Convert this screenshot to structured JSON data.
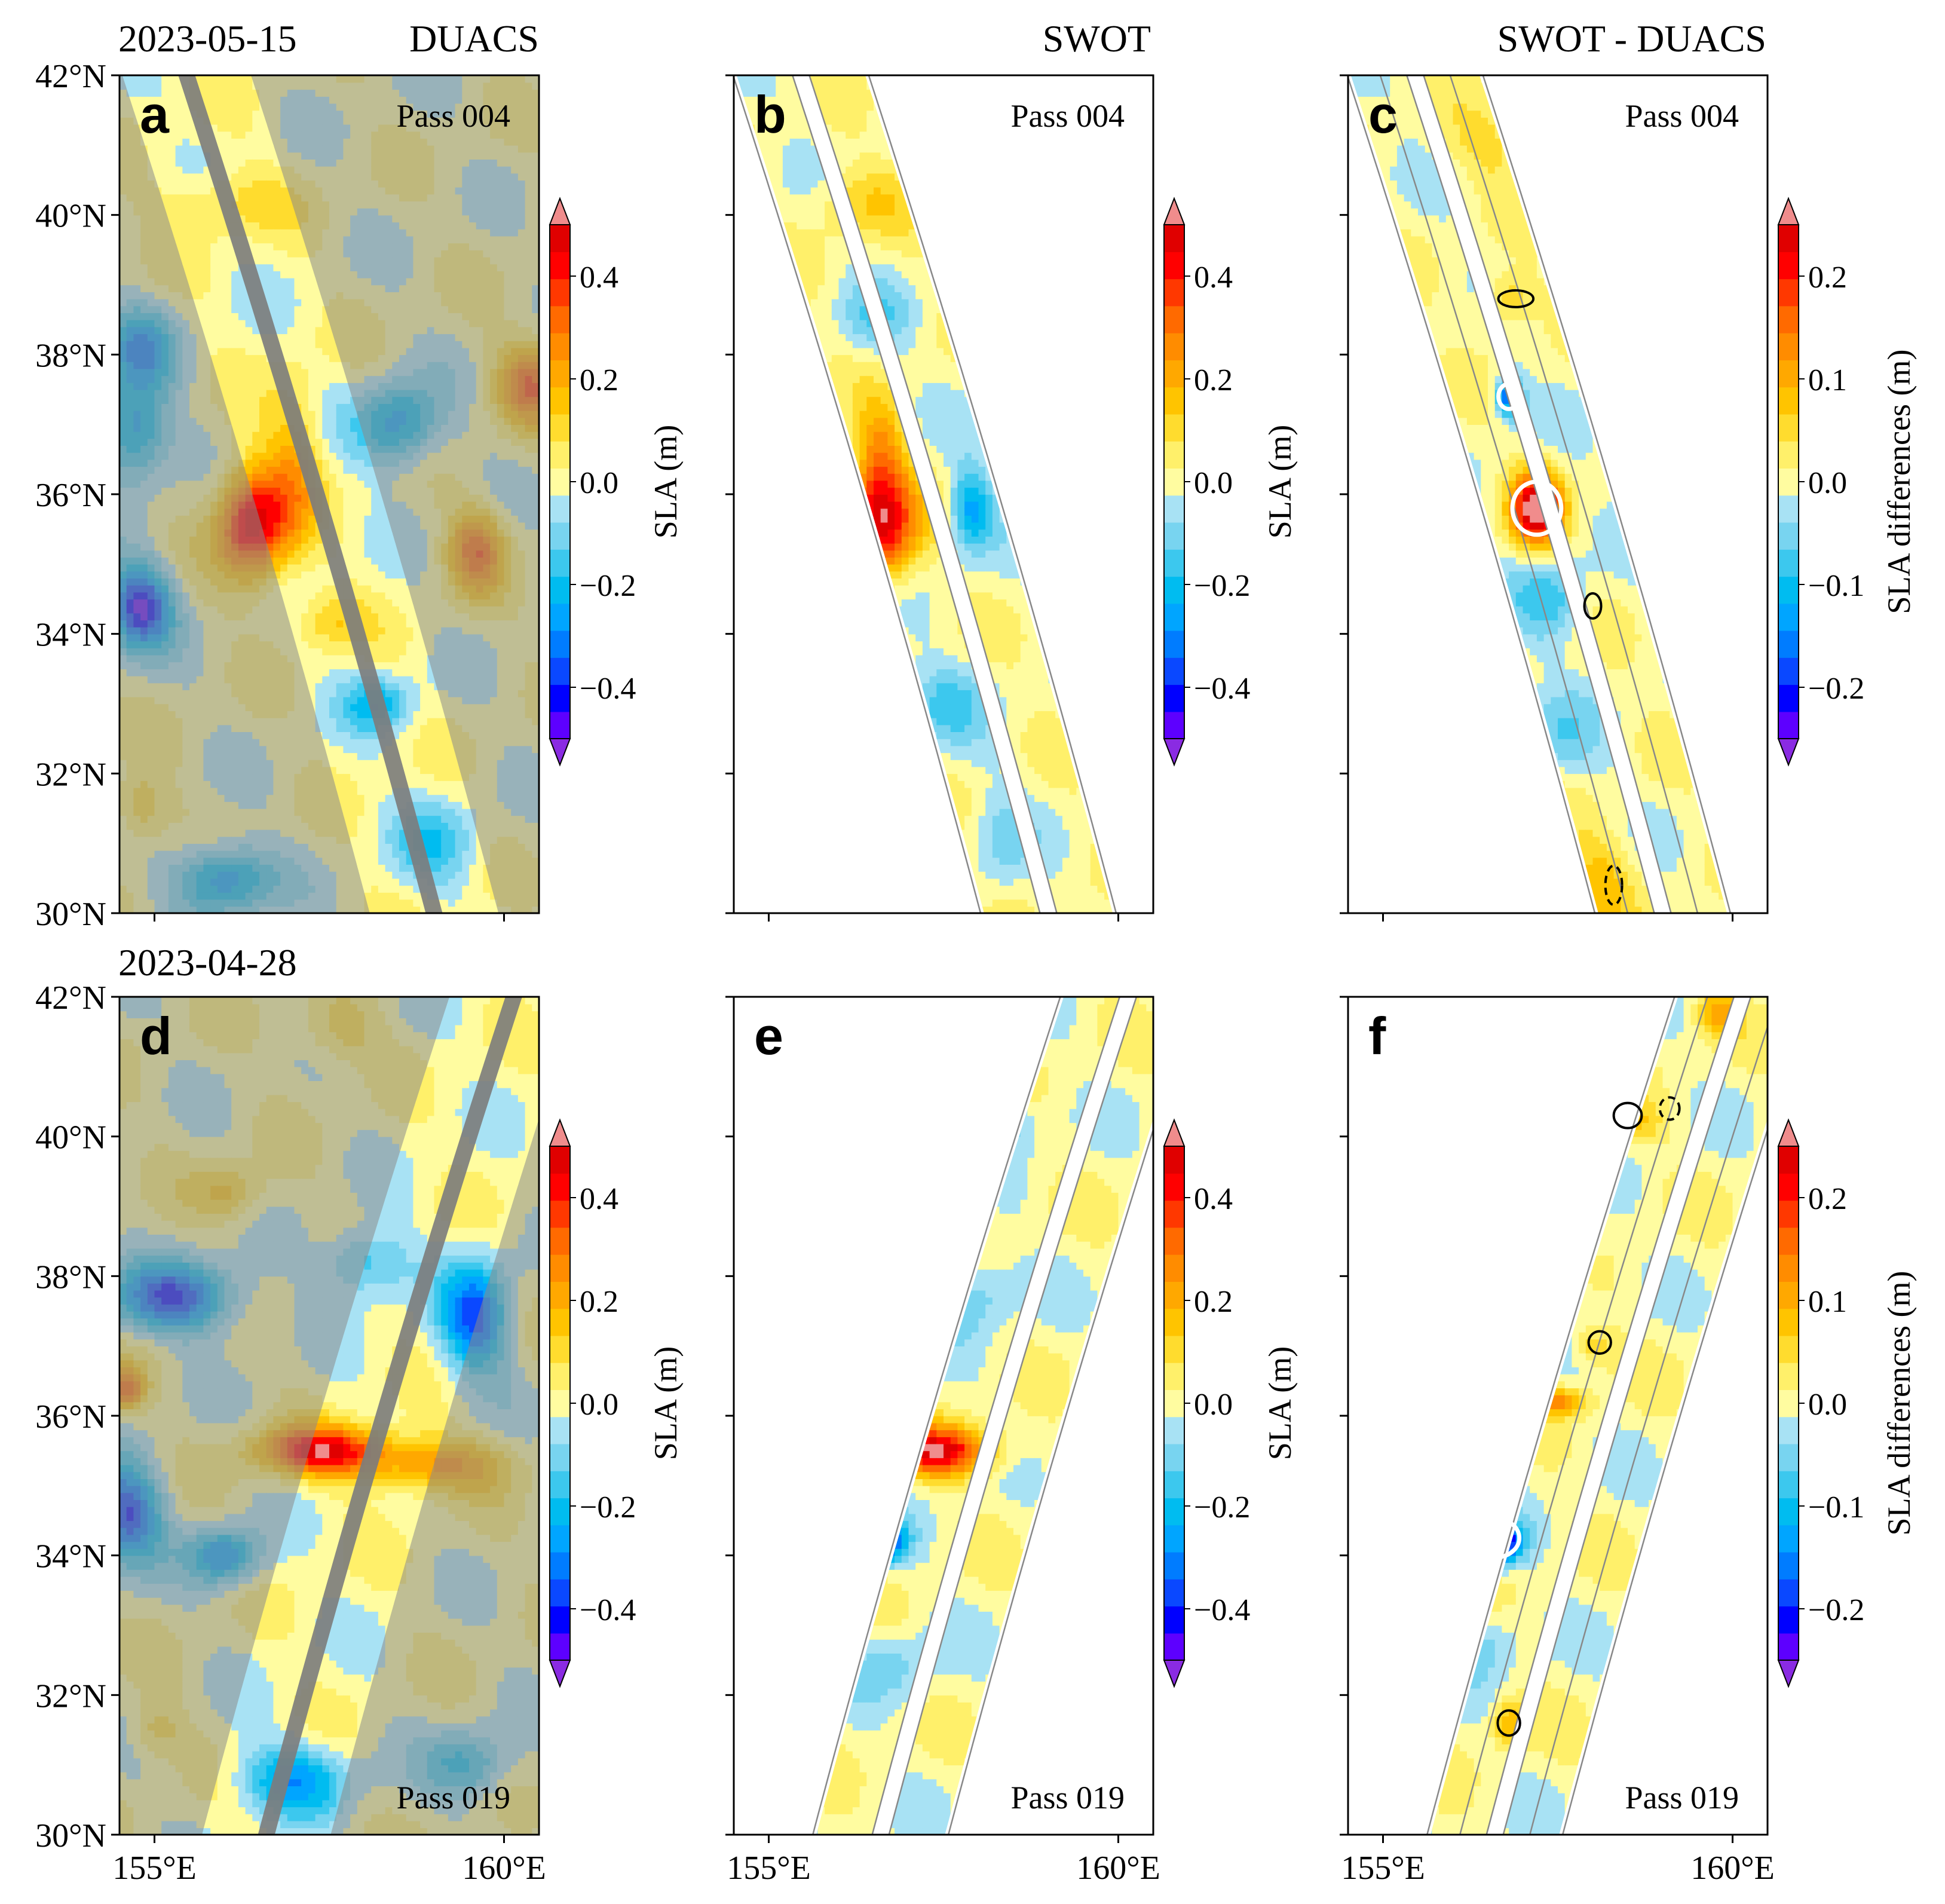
{
  "figure": {
    "col_titles": [
      "DUACS",
      "SWOT",
      "SWOT - DUACS"
    ],
    "row_dates": [
      "2023-05-15",
      "2023-04-28"
    ]
  },
  "chart_data": [
    {
      "type": "heatmap",
      "panel": "a",
      "top_title": "DUACS",
      "date": "2023-05-15",
      "pass": "Pass 004",
      "dataset": "DUACS",
      "swath": "descending",
      "xlim": [
        154.5,
        160.5
      ],
      "ylim": [
        30,
        42
      ],
      "xticks": [
        "155°E",
        "160°E"
      ],
      "yticks": [
        "30°N",
        "32°N",
        "34°N",
        "36°N",
        "38°N",
        "40°N",
        "42°N"
      ],
      "eddies": [
        {
          "lon": 156.4,
          "lat": 35.6,
          "amp": 0.48,
          "sx": 0.5,
          "sy": 0.8
        },
        {
          "lon": 157.0,
          "lat": 36.4,
          "amp": 0.18,
          "sx": 0.4,
          "sy": 1.2
        },
        {
          "lon": 154.8,
          "lat": 34.4,
          "amp": -0.45,
          "sx": 0.45,
          "sy": 0.6
        },
        {
          "lon": 154.7,
          "lat": 36.9,
          "amp": -0.3,
          "sx": 0.5,
          "sy": 0.7
        },
        {
          "lon": 154.8,
          "lat": 38.1,
          "amp": -0.25,
          "sx": 0.5,
          "sy": 0.6
        },
        {
          "lon": 158.5,
          "lat": 37.0,
          "amp": -0.28,
          "sx": 0.6,
          "sy": 0.6
        },
        {
          "lon": 159.6,
          "lat": 35.2,
          "amp": 0.3,
          "sx": 0.4,
          "sy": 0.6
        },
        {
          "lon": 160.4,
          "lat": 37.6,
          "amp": 0.3,
          "sx": 0.5,
          "sy": 0.6
        },
        {
          "lon": 156.0,
          "lat": 40.2,
          "amp": 0.1,
          "sx": 1.0,
          "sy": 0.5
        },
        {
          "lon": 156.0,
          "lat": 30.5,
          "amp": -0.3,
          "sx": 0.7,
          "sy": 0.5
        },
        {
          "lon": 154.8,
          "lat": 31.5,
          "amp": 0.15,
          "sx": 0.4,
          "sy": 0.5
        },
        {
          "lon": 158.2,
          "lat": 33.0,
          "amp": -0.2,
          "sx": 0.5,
          "sy": 0.4
        },
        {
          "lon": 159.0,
          "lat": 31.0,
          "amp": -0.15,
          "sx": 0.6,
          "sy": 0.6
        },
        {
          "lon": 157.5,
          "lat": 34.2,
          "amp": 0.12,
          "sx": 0.5,
          "sy": 0.4
        }
      ],
      "colorbar": {
        "label": "SLA (m)",
        "ticks": [
          "0.4",
          "0.2",
          "0.0",
          "−0.2",
          "−0.4"
        ],
        "range": [
          -0.5,
          0.5
        ]
      }
    },
    {
      "type": "heatmap",
      "panel": "b",
      "top_title": "SWOT",
      "date": "2023-05-15",
      "pass": "Pass 004",
      "dataset": "SWOT",
      "swath": "descending",
      "xlim": [
        154.5,
        160.5
      ],
      "ylim": [
        30,
        42
      ],
      "xticks": [
        "155°E",
        "160°E"
      ],
      "yticks": [],
      "eddies": [
        {
          "lon": 156.6,
          "lat": 35.6,
          "amp": 0.48,
          "sx": 0.5,
          "sy": 0.8
        },
        {
          "lon": 156.6,
          "lat": 36.7,
          "amp": 0.2,
          "sx": 0.35,
          "sy": 0.7
        },
        {
          "lon": 157.9,
          "lat": 35.8,
          "amp": -0.25,
          "sx": 0.3,
          "sy": 0.6
        },
        {
          "lon": 156.3,
          "lat": 40.2,
          "amp": 0.12,
          "sx": 0.7,
          "sy": 0.5
        },
        {
          "lon": 157.5,
          "lat": 33.0,
          "amp": -0.12,
          "sx": 0.6,
          "sy": 0.6
        },
        {
          "lon": 158.3,
          "lat": 31.0,
          "amp": -0.08,
          "sx": 0.4,
          "sy": 0.8
        },
        {
          "lon": 156.5,
          "lat": 38.5,
          "amp": -0.1,
          "sx": 0.5,
          "sy": 0.5
        }
      ],
      "colorbar": {
        "label": "SLA (m)",
        "ticks": [
          "0.4",
          "0.2",
          "0.0",
          "−0.2",
          "−0.4"
        ],
        "range": [
          -0.5,
          0.5
        ]
      }
    },
    {
      "type": "heatmap",
      "panel": "c",
      "top_title": "SWOT - DUACS",
      "date": "2023-05-15",
      "pass": "Pass 004",
      "dataset": "DIFF",
      "swath": "descending",
      "xlim": [
        154.5,
        160.5
      ],
      "ylim": [
        30,
        42
      ],
      "xticks": [
        "155°E",
        "160°E"
      ],
      "yticks": [],
      "eddies": [
        {
          "lon": 157.2,
          "lat": 35.8,
          "amp": 0.22,
          "sx": 0.35,
          "sy": 0.5
        },
        {
          "lon": 156.8,
          "lat": 37.4,
          "amp": -0.14,
          "sx": 0.2,
          "sy": 0.3
        },
        {
          "lon": 157.4,
          "lat": 34.5,
          "amp": -0.06,
          "sx": 0.5,
          "sy": 0.6
        },
        {
          "lon": 156.8,
          "lat": 38.8,
          "amp": 0.06,
          "sx": 0.4,
          "sy": 0.4
        },
        {
          "lon": 158.1,
          "lat": 30.5,
          "amp": 0.06,
          "sx": 0.5,
          "sy": 0.7
        },
        {
          "lon": 157.5,
          "lat": 32.5,
          "amp": -0.04,
          "sx": 0.6,
          "sy": 0.6
        },
        {
          "lon": 156.5,
          "lat": 41.0,
          "amp": 0.04,
          "sx": 0.6,
          "sy": 0.5
        }
      ],
      "contours": [
        {
          "lon": 157.2,
          "lat": 35.8,
          "rx": 0.35,
          "ry": 0.38,
          "color": "#ffffff",
          "dash": false
        },
        {
          "lon": 156.8,
          "lat": 37.4,
          "rx": 0.15,
          "ry": 0.18,
          "color": "#ffffff",
          "dash": false
        },
        {
          "lon": 156.9,
          "lat": 38.8,
          "rx": 0.25,
          "ry": 0.12,
          "color": "#000000",
          "dash": false
        },
        {
          "lon": 158.0,
          "lat": 34.4,
          "rx": 0.12,
          "ry": 0.18,
          "color": "#000000",
          "dash": false
        },
        {
          "lon": 158.3,
          "lat": 30.4,
          "rx": 0.12,
          "ry": 0.28,
          "color": "#000000",
          "dash": true
        }
      ],
      "colorbar": {
        "label": "SLA differences (m)",
        "ticks": [
          "0.2",
          "0.1",
          "0.0",
          "−0.1",
          "−0.2"
        ],
        "range": [
          -0.2,
          0.2
        ]
      }
    },
    {
      "type": "heatmap",
      "panel": "d",
      "top_title": "",
      "date": "2023-04-28",
      "pass": "Pass 019",
      "dataset": "DUACS",
      "swath": "ascending",
      "xlim": [
        154.5,
        160.5
      ],
      "ylim": [
        30,
        42
      ],
      "xticks": [
        "155°E",
        "160°E"
      ],
      "yticks": [
        "30°N",
        "32°N",
        "34°N",
        "36°N",
        "38°N",
        "40°N",
        "42°N"
      ],
      "eddies": [
        {
          "lon": 157.4,
          "lat": 35.5,
          "amp": 0.45,
          "sx": 0.9,
          "sy": 0.35
        },
        {
          "lon": 159.0,
          "lat": 35.3,
          "amp": 0.25,
          "sx": 1.0,
          "sy": 0.4
        },
        {
          "lon": 155.3,
          "lat": 37.7,
          "amp": -0.38,
          "sx": 0.9,
          "sy": 0.5
        },
        {
          "lon": 154.6,
          "lat": 34.6,
          "amp": -0.4,
          "sx": 0.5,
          "sy": 0.7
        },
        {
          "lon": 156.0,
          "lat": 34.0,
          "amp": -0.3,
          "sx": 0.5,
          "sy": 0.4
        },
        {
          "lon": 159.6,
          "lat": 37.4,
          "amp": -0.35,
          "sx": 0.5,
          "sy": 0.8
        },
        {
          "lon": 158.0,
          "lat": 38.2,
          "amp": -0.2,
          "sx": 0.6,
          "sy": 0.5
        },
        {
          "lon": 154.6,
          "lat": 36.4,
          "amp": 0.3,
          "sx": 0.25,
          "sy": 0.3
        },
        {
          "lon": 156.1,
          "lat": 39.2,
          "amp": 0.15,
          "sx": 0.5,
          "sy": 0.4
        },
        {
          "lon": 157.0,
          "lat": 30.8,
          "amp": -0.25,
          "sx": 0.8,
          "sy": 0.5
        },
        {
          "lon": 159.5,
          "lat": 31.0,
          "amp": -0.2,
          "sx": 0.6,
          "sy": 0.5
        },
        {
          "lon": 157.6,
          "lat": 41.5,
          "amp": 0.12,
          "sx": 0.6,
          "sy": 0.5
        },
        {
          "lon": 155.0,
          "lat": 31.5,
          "amp": 0.12,
          "sx": 0.4,
          "sy": 0.4
        }
      ],
      "colorbar": {
        "label": "SLA (m)",
        "ticks": [
          "0.4",
          "0.2",
          "0.0",
          "−0.2",
          "−0.4"
        ],
        "range": [
          -0.5,
          0.5
        ]
      }
    },
    {
      "type": "heatmap",
      "panel": "e",
      "top_title": "",
      "date": "2023-04-28",
      "pass": "Pass 019",
      "dataset": "SWOT",
      "swath": "ascending",
      "xlim": [
        154.5,
        160.5
      ],
      "ylim": [
        30,
        42
      ],
      "xticks": [
        "155°E",
        "160°E"
      ],
      "yticks": [],
      "eddies": [
        {
          "lon": 157.4,
          "lat": 35.5,
          "amp": 0.47,
          "sx": 0.8,
          "sy": 0.35
        },
        {
          "lon": 156.6,
          "lat": 34.2,
          "amp": -0.45,
          "sx": 0.35,
          "sy": 0.3
        },
        {
          "lon": 158.0,
          "lat": 37.8,
          "amp": -0.12,
          "sx": 0.5,
          "sy": 0.6
        },
        {
          "lon": 158.5,
          "lat": 40.2,
          "amp": -0.1,
          "sx": 0.4,
          "sy": 0.4
        },
        {
          "lon": 156.8,
          "lat": 32.4,
          "amp": -0.1,
          "sx": 0.6,
          "sy": 0.5
        },
        {
          "lon": 157.9,
          "lat": 41.2,
          "amp": 0.1,
          "sx": 0.5,
          "sy": 0.4
        }
      ],
      "colorbar": {
        "label": "SLA (m)",
        "ticks": [
          "0.4",
          "0.2",
          "0.0",
          "−0.2",
          "−0.4"
        ],
        "range": [
          -0.5,
          0.5
        ]
      }
    },
    {
      "type": "heatmap",
      "panel": "f",
      "top_title": "",
      "date": "2023-04-28",
      "pass": "Pass 019",
      "dataset": "DIFF",
      "swath": "ascending",
      "xlim": [
        154.5,
        160.5
      ],
      "ylim": [
        30,
        42
      ],
      "xticks": [
        "155°E",
        "160°E"
      ],
      "yticks": [],
      "eddies": [
        {
          "lon": 156.6,
          "lat": 34.2,
          "amp": -0.24,
          "sx": 0.35,
          "sy": 0.3
        },
        {
          "lon": 156.3,
          "lat": 33.6,
          "amp": 0.18,
          "sx": 0.2,
          "sy": 0.25
        },
        {
          "lon": 157.5,
          "lat": 36.2,
          "amp": 0.1,
          "sx": 0.45,
          "sy": 0.2
        },
        {
          "lon": 158.0,
          "lat": 37.0,
          "amp": 0.05,
          "sx": 0.3,
          "sy": 0.3
        },
        {
          "lon": 158.6,
          "lat": 40.2,
          "amp": 0.05,
          "sx": 0.4,
          "sy": 0.3
        },
        {
          "lon": 159.8,
          "lat": 41.8,
          "amp": 0.08,
          "sx": 0.3,
          "sy": 0.3
        },
        {
          "lon": 156.8,
          "lat": 31.6,
          "amp": 0.07,
          "sx": 0.25,
          "sy": 0.35
        },
        {
          "lon": 157.6,
          "lat": 38.5,
          "amp": -0.04,
          "sx": 0.5,
          "sy": 0.6
        },
        {
          "lon": 156.5,
          "lat": 32.8,
          "amp": -0.04,
          "sx": 0.5,
          "sy": 0.5
        }
      ],
      "contours": [
        {
          "lon": 156.6,
          "lat": 34.25,
          "rx": 0.35,
          "ry": 0.28,
          "color": "#ffffff",
          "dash": false
        },
        {
          "lon": 158.5,
          "lat": 40.3,
          "rx": 0.2,
          "ry": 0.18,
          "color": "#000000",
          "dash": false
        },
        {
          "lon": 159.1,
          "lat": 40.4,
          "rx": 0.14,
          "ry": 0.16,
          "color": "#000000",
          "dash": true
        },
        {
          "lon": 158.1,
          "lat": 37.05,
          "rx": 0.16,
          "ry": 0.16,
          "color": "#000000",
          "dash": false
        },
        {
          "lon": 156.8,
          "lat": 31.6,
          "rx": 0.16,
          "ry": 0.18,
          "color": "#000000",
          "dash": false
        }
      ],
      "colorbar": {
        "label": "SLA differences (m)",
        "ticks": [
          "0.2",
          "0.1",
          "0.0",
          "−0.1",
          "−0.2"
        ],
        "range": [
          -0.2,
          0.2
        ]
      }
    }
  ],
  "colormap": [
    "#8a2be2",
    "#5d00ff",
    "#0000ff",
    "#0a48ff",
    "#007cff",
    "#00a5ff",
    "#00bcf0",
    "#3cc8ee",
    "#78d4f0",
    "#a8e2f4",
    "#fffca0",
    "#fff06a",
    "#ffdc2e",
    "#ffc400",
    "#ffa800",
    "#ff8c00",
    "#ff6a00",
    "#ff3800",
    "#ff0000",
    "#e00000",
    "#f08c8c"
  ]
}
